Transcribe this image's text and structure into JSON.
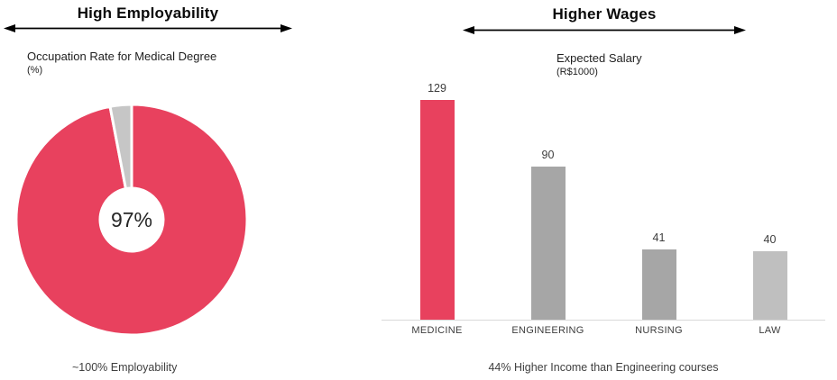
{
  "left_panel": {
    "title": "High Employability",
    "subtitle": "Occupation Rate for Medical Degree",
    "subtitle_unit": "(%)",
    "caption": "~100% Employability"
  },
  "right_panel": {
    "title": "Higher Wages",
    "subtitle": "Expected Salary",
    "subtitle_unit": "(R$1000)",
    "caption": "44% Higher Income than Engineering courses"
  },
  "colors": {
    "accent_red": "#e8415e",
    "slice_gray": "#c6c6c6",
    "bar_gray_medium": "#a6a6a6",
    "bar_gray_light": "#bfbfbf",
    "axis_line": "#d9d9d9",
    "arrow_black": "#000000",
    "text_dark": "#262626",
    "text_gray": "#404040"
  },
  "chart_data": [
    {
      "type": "pie",
      "donut": true,
      "title": "Occupation Rate for Medical Degree (%)",
      "values": [
        97,
        3
      ],
      "colors": [
        "#e8415e",
        "#c6c6c6"
      ],
      "center_label": "97%",
      "start_angle_deg": 0,
      "legend": "none"
    },
    {
      "type": "bar",
      "title": "Expected Salary (R$1000)",
      "categories": [
        "MEDICINE",
        "ENGINEERING",
        "NURSING",
        "LAW"
      ],
      "values": [
        129,
        90,
        41,
        40
      ],
      "colors": [
        "#e8415e",
        "#a6a6a6",
        "#a6a6a6",
        "#bfbfbf"
      ],
      "ylim": [
        0,
        140
      ],
      "grid": false,
      "legend": "none",
      "value_labels": true
    }
  ]
}
